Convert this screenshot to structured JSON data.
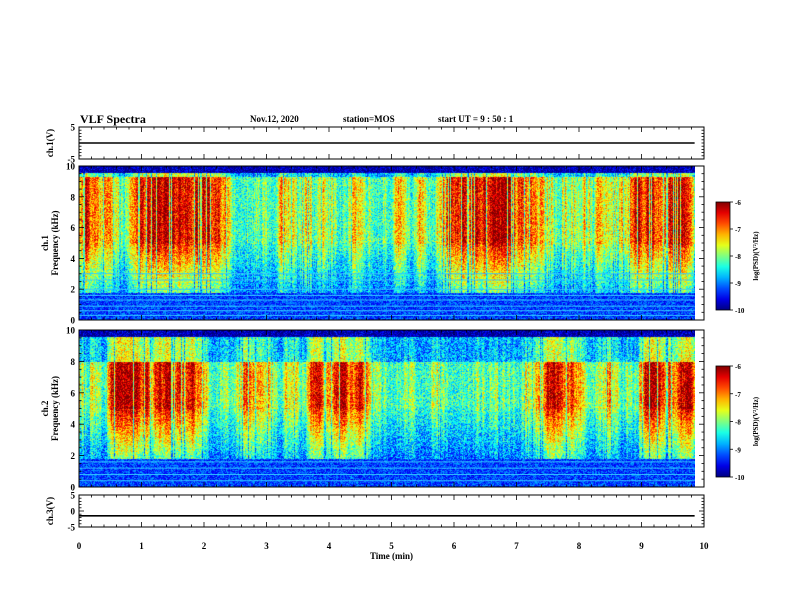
{
  "header": {
    "title": "VLF Spectra",
    "date": "Nov.12, 2020",
    "station": "station=MOS",
    "start_ut": "start UT =  9 : 50 : 1"
  },
  "chart_data": [
    {
      "type": "line",
      "panel": "ch1-voltage",
      "ylabel": "ch.1(V)",
      "ylim": [
        -5,
        5
      ],
      "yticks": [
        5,
        -5
      ],
      "xlim": [
        0,
        10
      ],
      "series": [
        {
          "x": [
            0,
            9.85
          ],
          "values": [
            0,
            0
          ]
        }
      ]
    },
    {
      "type": "heatmap",
      "panel": "ch1-spectrogram",
      "ylabel": "ch.1\nFrequency (kHz)",
      "ylim": [
        0,
        10
      ],
      "yticks": [
        0,
        2,
        4,
        6,
        8,
        10
      ],
      "xlim": [
        0,
        10
      ],
      "data_xlim": [
        0,
        9.85
      ],
      "colorbar": {
        "label": "log(PSD)(V²/Hz)",
        "range": [
          -10,
          -6
        ],
        "ticks": [
          -6,
          -7,
          -8,
          -9,
          -10
        ]
      },
      "bands_khz": [
        0.3,
        0.6,
        0.9,
        1.3,
        1.6,
        2.0,
        2.6,
        3.0
      ],
      "intensity_profile": {
        "strong_range_khz": [
          5.0,
          9.3
        ],
        "noise_floor_top_khz": 1.8
      }
    },
    {
      "type": "heatmap",
      "panel": "ch2-spectrogram",
      "ylabel": "ch.2\nFrequency (kHz)",
      "ylim": [
        0,
        10
      ],
      "yticks": [
        0,
        2,
        4,
        6,
        8,
        10
      ],
      "xlim": [
        0,
        10
      ],
      "data_xlim": [
        0,
        9.85
      ],
      "colorbar": {
        "label": "log(PSD)(V²/Hz)",
        "range": [
          -10,
          -6
        ],
        "ticks": [
          -6,
          -7,
          -8,
          -9,
          -10
        ]
      },
      "bands_khz": [
        0.4,
        0.8,
        1.2,
        1.6
      ],
      "intensity_profile": {
        "strong_range_khz": [
          5.0,
          8.0
        ],
        "noise_floor_top_khz": 1.8
      }
    },
    {
      "type": "line",
      "panel": "ch3-voltage",
      "ylabel": "ch.3(V)",
      "ylim": [
        -5,
        5
      ],
      "yticks": [
        5,
        0,
        -5
      ],
      "xlim": [
        0,
        10
      ],
      "xlabel": "Time (min)",
      "xticks": [
        0,
        1,
        2,
        3,
        4,
        5,
        6,
        7,
        8,
        9,
        10
      ],
      "series": [
        {
          "x": [
            0,
            9.85
          ],
          "values": [
            -1.5,
            -1.5
          ]
        }
      ]
    }
  ]
}
